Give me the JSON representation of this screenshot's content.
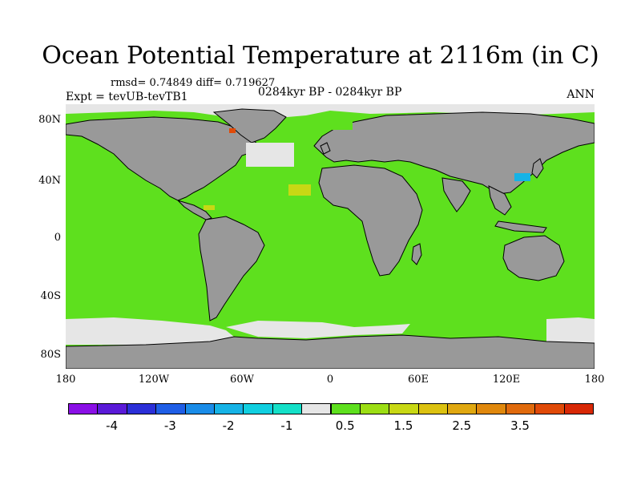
{
  "title": "Ocean Potential Temperature at 2116m (in C)",
  "stats": "rmsd= 0.74849 diff= 0.719627",
  "experiment": "Expt = tevUB-tevTB1",
  "period": "0284kyr BP - 0284kyr BP",
  "season": "ANN",
  "map": {
    "projection": "cylindrical equidistant",
    "lon_range": [
      -180,
      180
    ],
    "lat_range": [
      -90,
      90
    ],
    "land_color": "#999999",
    "dominant_ocean_value": 0.7,
    "y_ticks": [
      "80N",
      "40N",
      "0",
      "40S",
      "80S"
    ],
    "x_ticks": [
      "180",
      "120W",
      "60W",
      "0",
      "60E",
      "120E",
      "180"
    ]
  },
  "colorbar": {
    "colors": [
      "#8a0fe6",
      "#5a1ad8",
      "#2b2fd8",
      "#1f5ee6",
      "#1a8ce8",
      "#16b3e6",
      "#10cfe0",
      "#14e0c8",
      "#e6e6e6",
      "#5ee01e",
      "#9cde14",
      "#c8d814",
      "#dcc210",
      "#e0a810",
      "#e0880c",
      "#e06a0c",
      "#e04a08",
      "#d82806"
    ],
    "labels": [
      "-4",
      "-3",
      "-2",
      "-1",
      "0.5",
      "1.5",
      "2.5",
      "3.5"
    ],
    "label_cells": [
      1,
      3,
      5,
      7,
      9,
      11,
      13,
      15
    ]
  }
}
